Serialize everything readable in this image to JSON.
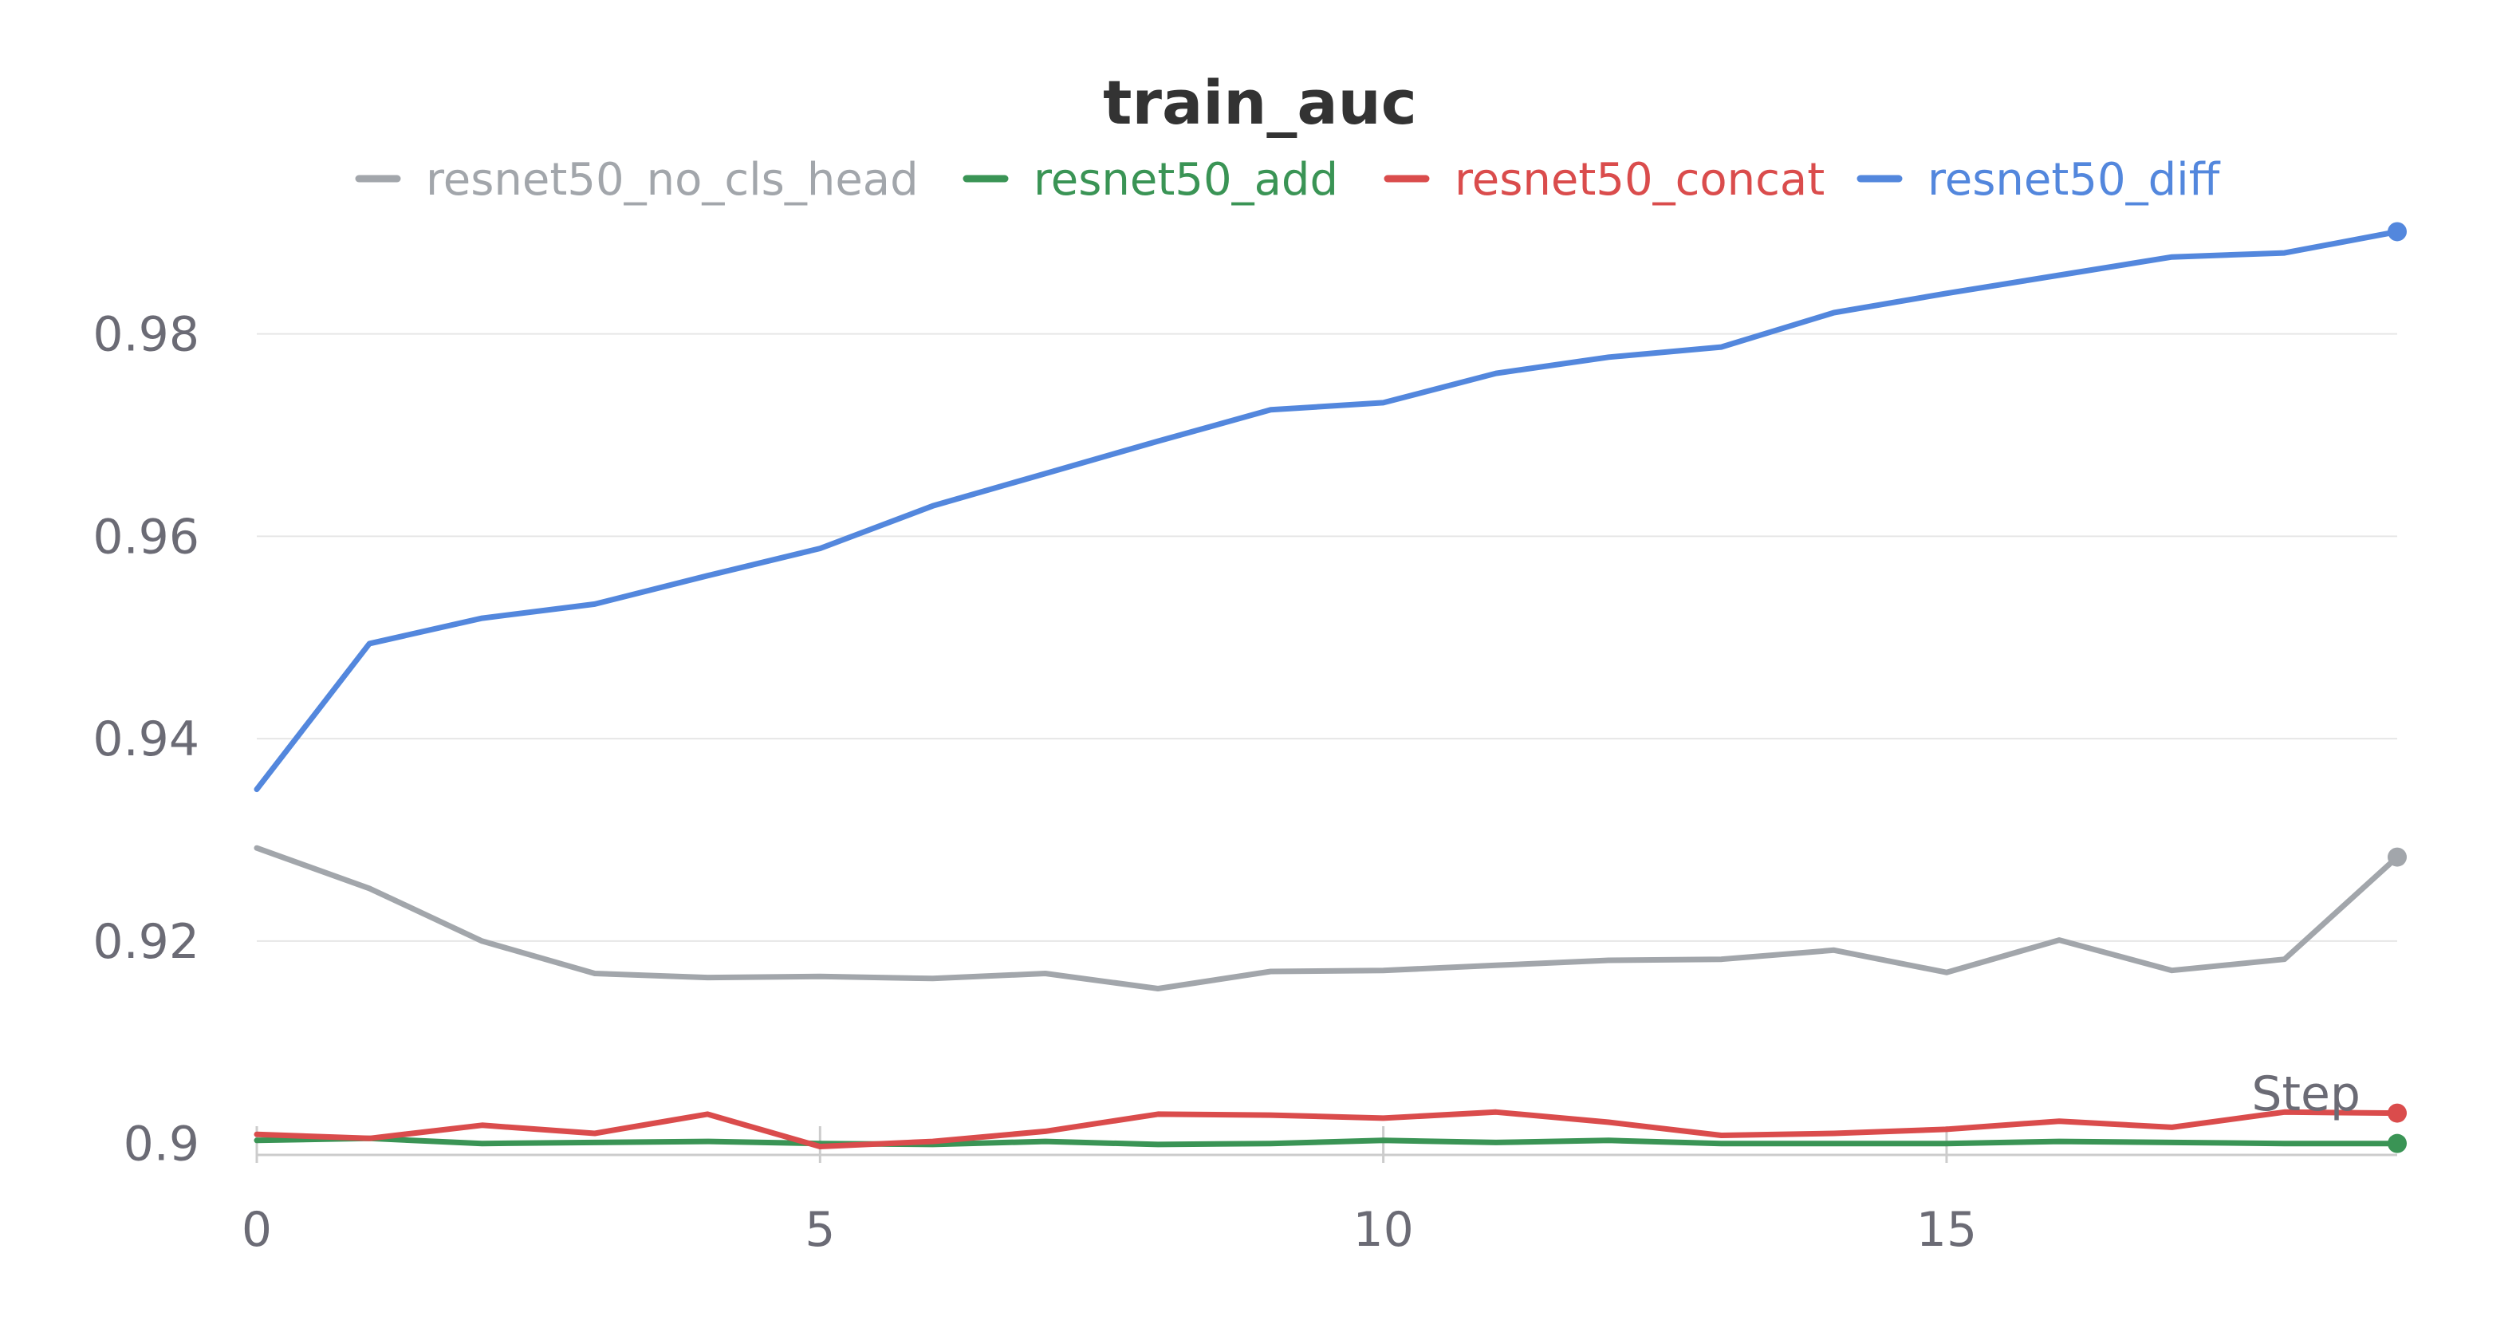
{
  "chart_data": {
    "type": "line",
    "title": "train_auc",
    "xlabel": "Step",
    "ylabel": "",
    "xlim": [
      0,
      19
    ],
    "ylim": [
      0.8995,
      0.9925
    ],
    "x_ticks": [
      0,
      5,
      10,
      15
    ],
    "y_ticks": [
      0.9,
      0.92,
      0.94,
      0.96,
      0.98
    ],
    "y_tick_labels": [
      "0.9",
      "0.92",
      "0.94",
      "0.96",
      "0.98"
    ],
    "grid": "horizontal",
    "legend_position": "top-center",
    "x": [
      0,
      1,
      2,
      3,
      4,
      5,
      6,
      7,
      8,
      9,
      10,
      11,
      12,
      13,
      14,
      15,
      16,
      17,
      18,
      19
    ],
    "series": [
      {
        "name": "resnet50_no_cls_head",
        "color": "#a2a6ab",
        "values": [
          0.9292,
          0.9252,
          0.92,
          0.9168,
          0.9164,
          0.9165,
          0.9163,
          0.9168,
          0.9153,
          0.917,
          0.9171,
          0.9176,
          0.9181,
          0.9182,
          0.9191,
          0.9169,
          0.9201,
          0.9171,
          0.9182,
          0.9283
        ]
      },
      {
        "name": "resnet50_add",
        "color": "#3a9455",
        "values": [
          0.9003,
          0.9005,
          0.9,
          0.9001,
          0.9002,
          0.9,
          0.8999,
          0.9002,
          0.8999,
          0.9,
          0.9003,
          0.9001,
          0.9003,
          0.9,
          0.9,
          0.9,
          0.9002,
          0.9001,
          0.9,
          0.9
        ]
      },
      {
        "name": "resnet50_concat",
        "color": "#da4c4c",
        "values": [
          0.9009,
          0.9005,
          0.9018,
          0.901,
          0.9029,
          0.8997,
          0.9002,
          0.9012,
          0.9029,
          0.9028,
          0.9025,
          0.9031,
          0.9021,
          0.9008,
          0.901,
          0.9014,
          0.9022,
          0.9016,
          0.9031,
          0.903
        ]
      },
      {
        "name": "resnet50_diff",
        "color": "#5387dd",
        "values": [
          0.935,
          0.9494,
          0.9519,
          0.9533,
          0.9561,
          0.9588,
          0.963,
          0.9662,
          0.9694,
          0.9725,
          0.9732,
          0.9761,
          0.9777,
          0.9787,
          0.9821,
          0.984,
          0.9858,
          0.9876,
          0.988,
          0.9901
        ]
      }
    ]
  }
}
